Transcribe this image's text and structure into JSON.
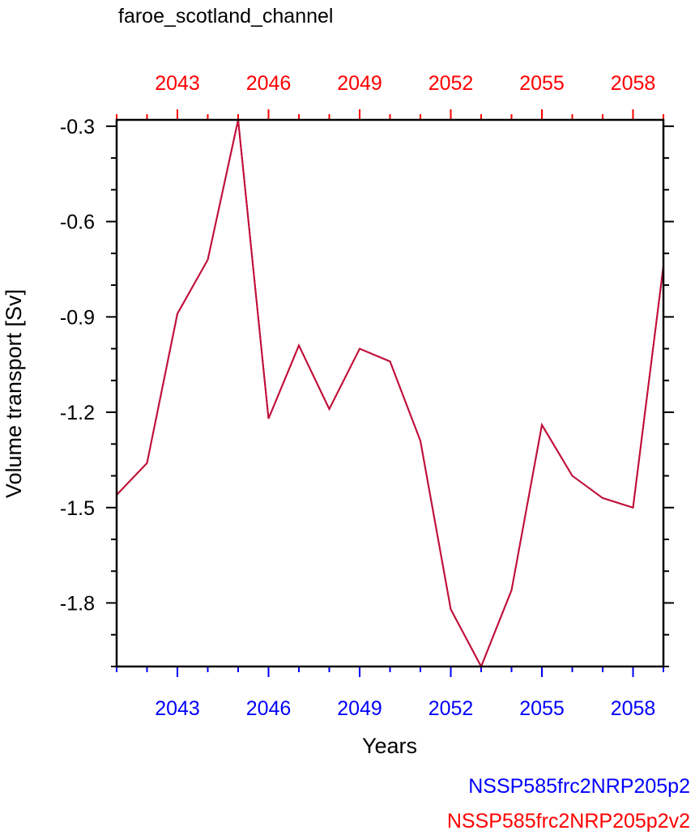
{
  "chart_data": {
    "type": "line",
    "title": "faroe_scotland_channel",
    "xlabel": "Years",
    "ylabel": "Volume transport [Sv]",
    "xlim": [
      2041,
      2059
    ],
    "ylim": [
      -2.0,
      -0.28
    ],
    "x_ticks": [
      2043,
      2046,
      2049,
      2052,
      2055,
      2058
    ],
    "y_ticks": [
      -0.3,
      -0.6,
      -0.9,
      -1.2,
      -1.5,
      -1.8
    ],
    "y_tick_labels": [
      "-0.3",
      "-0.6",
      "-0.9",
      "-1.2",
      "-1.5",
      "-1.8"
    ],
    "bottom_axis_color": "#0000ff",
    "top_axis_color": "#ff0000",
    "line_color": "#c0103a",
    "series": [
      {
        "name": "NSSP585frc2NRP205p2",
        "color": "#0000ff",
        "x": [
          2041,
          2042,
          2043,
          2044,
          2045,
          2046,
          2047,
          2048,
          2049,
          2050,
          2051,
          2052,
          2053,
          2054,
          2055,
          2056,
          2057,
          2058,
          2059
        ],
        "y": [
          -1.46,
          -1.36,
          -0.89,
          -0.72,
          -0.28,
          -1.22,
          -0.99,
          -1.19,
          -1.0,
          -1.04,
          -1.29,
          -1.82,
          -2.0,
          -1.76,
          -1.24,
          -1.4,
          -1.47,
          -1.5,
          -0.74
        ]
      },
      {
        "name": "NSSP585frc2NRP205p2v2",
        "color": "#ff0000",
        "x": [
          2041,
          2042,
          2043,
          2044,
          2045,
          2046,
          2047,
          2048,
          2049,
          2050,
          2051,
          2052,
          2053,
          2054,
          2055,
          2056,
          2057,
          2058,
          2059
        ],
        "y": [
          -1.46,
          -1.36,
          -0.89,
          -0.72,
          -0.28,
          -1.22,
          -0.99,
          -1.19,
          -1.0,
          -1.04,
          -1.29,
          -1.82,
          -2.0,
          -1.76,
          -1.24,
          -1.4,
          -1.47,
          -1.5,
          -0.74
        ]
      }
    ]
  }
}
